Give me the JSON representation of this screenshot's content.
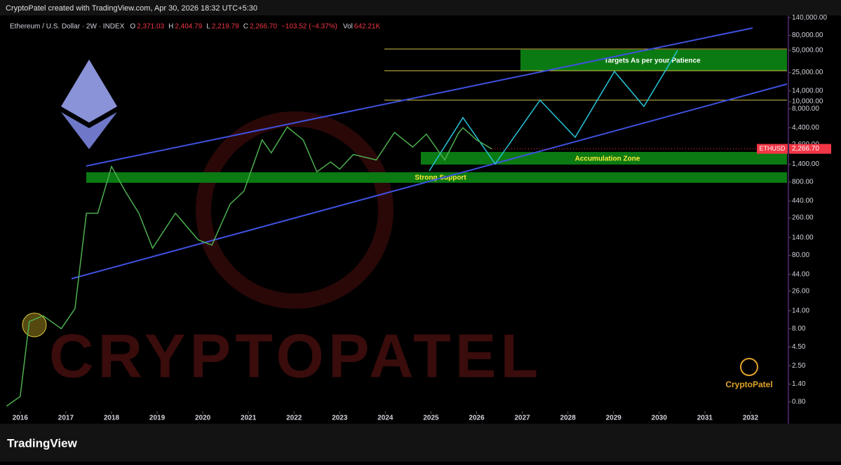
{
  "chart_data": {
    "type": "line",
    "header": "CryptoPatel created with TradingView.com, Apr 30, 2026 18:32 UTC+5:30",
    "symbol": "Ethereum / U.S. Dollar · 2W · INDEX",
    "ohlc": [
      {
        "label": "O",
        "value": "2,371.03"
      },
      {
        "label": "H",
        "value": "2,404.79"
      },
      {
        "label": "L",
        "value": "2,219.79"
      },
      {
        "label": "C",
        "value": "2,266.70"
      }
    ],
    "change": "−103.52 (−4.37%)",
    "volume": {
      "label": "Vol",
      "value": "642.21K"
    },
    "log_scale": true,
    "x": [
      2015.7,
      2016.0,
      2016.2,
      2016.5,
      2016.9,
      2017.2,
      2017.45,
      2017.7,
      2018.0,
      2018.3,
      2018.6,
      2018.9,
      2019.4,
      2019.9,
      2020.2,
      2020.6,
      2020.9,
      2021.3,
      2021.5,
      2021.85,
      2022.2,
      2022.5,
      2022.8,
      2023.0,
      2023.3,
      2023.8,
      2024.2,
      2024.6,
      2024.9,
      2025.3,
      2025.6,
      2025.7,
      2026.0,
      2026.33
    ],
    "series": [
      {
        "name": "ETHUSD",
        "color": "#4caf50",
        "values": [
          0.7,
          0.95,
          10,
          12,
          8,
          15,
          300,
          300,
          1300,
          600,
          300,
          100,
          300,
          130,
          110,
          400,
          600,
          3000,
          2000,
          4500,
          3000,
          1100,
          1500,
          1200,
          1900,
          1600,
          3800,
          2400,
          3600,
          1600,
          3700,
          4400,
          3000,
          2266.7
        ],
        "last_label": "2,266.70"
      }
    ],
    "xlim": [
      2015.68,
      2032.8
    ],
    "xticks": [
      2016,
      2017,
      2018,
      2019,
      2020,
      2021,
      2022,
      2023,
      2024,
      2025,
      2026,
      2027,
      2028,
      2029,
      2030,
      2031,
      2032
    ],
    "ylim": [
      0.6,
      150000
    ],
    "yticks": [
      {
        "value": 140000,
        "label": "140,000.00"
      },
      {
        "value": 80000,
        "label": "80,000.00"
      },
      {
        "value": 50000,
        "label": "50,000.00"
      },
      {
        "value": 25000,
        "label": "25,000.00"
      },
      {
        "value": 14000,
        "label": "14,000.00"
      },
      {
        "value": 10000,
        "label": "10,000.00"
      },
      {
        "value": 8000,
        "label": "8,000.00"
      },
      {
        "value": 4400,
        "label": "4,400.00"
      },
      {
        "value": 2600,
        "label": "2,600.00"
      },
      {
        "value": 1400,
        "label": "1,400.00"
      },
      {
        "value": 800,
        "label": "800.00"
      },
      {
        "value": 440,
        "label": "440.00"
      },
      {
        "value": 260,
        "label": "260.00"
      },
      {
        "value": 140,
        "label": "140.00"
      },
      {
        "value": 80,
        "label": "80.00"
      },
      {
        "value": 44,
        "label": "44.00"
      },
      {
        "value": 26,
        "label": "26.00"
      },
      {
        "value": 14,
        "label": "14.00"
      },
      {
        "value": 8,
        "label": "8.00"
      },
      {
        "value": 4.5,
        "label": "4.50"
      },
      {
        "value": 2.5,
        "label": "2.50"
      },
      {
        "value": 1.4,
        "label": "1.40"
      },
      {
        "value": 0.8,
        "label": "0.80"
      }
    ],
    "annotations": {
      "targets": "Targets As per your Patience",
      "accumulation": "Accumulation Zone",
      "support": "Strong Support"
    },
    "watermark": "CRYPTOPATEL",
    "logo": "CryptoPatel",
    "footer": "TradingView"
  }
}
